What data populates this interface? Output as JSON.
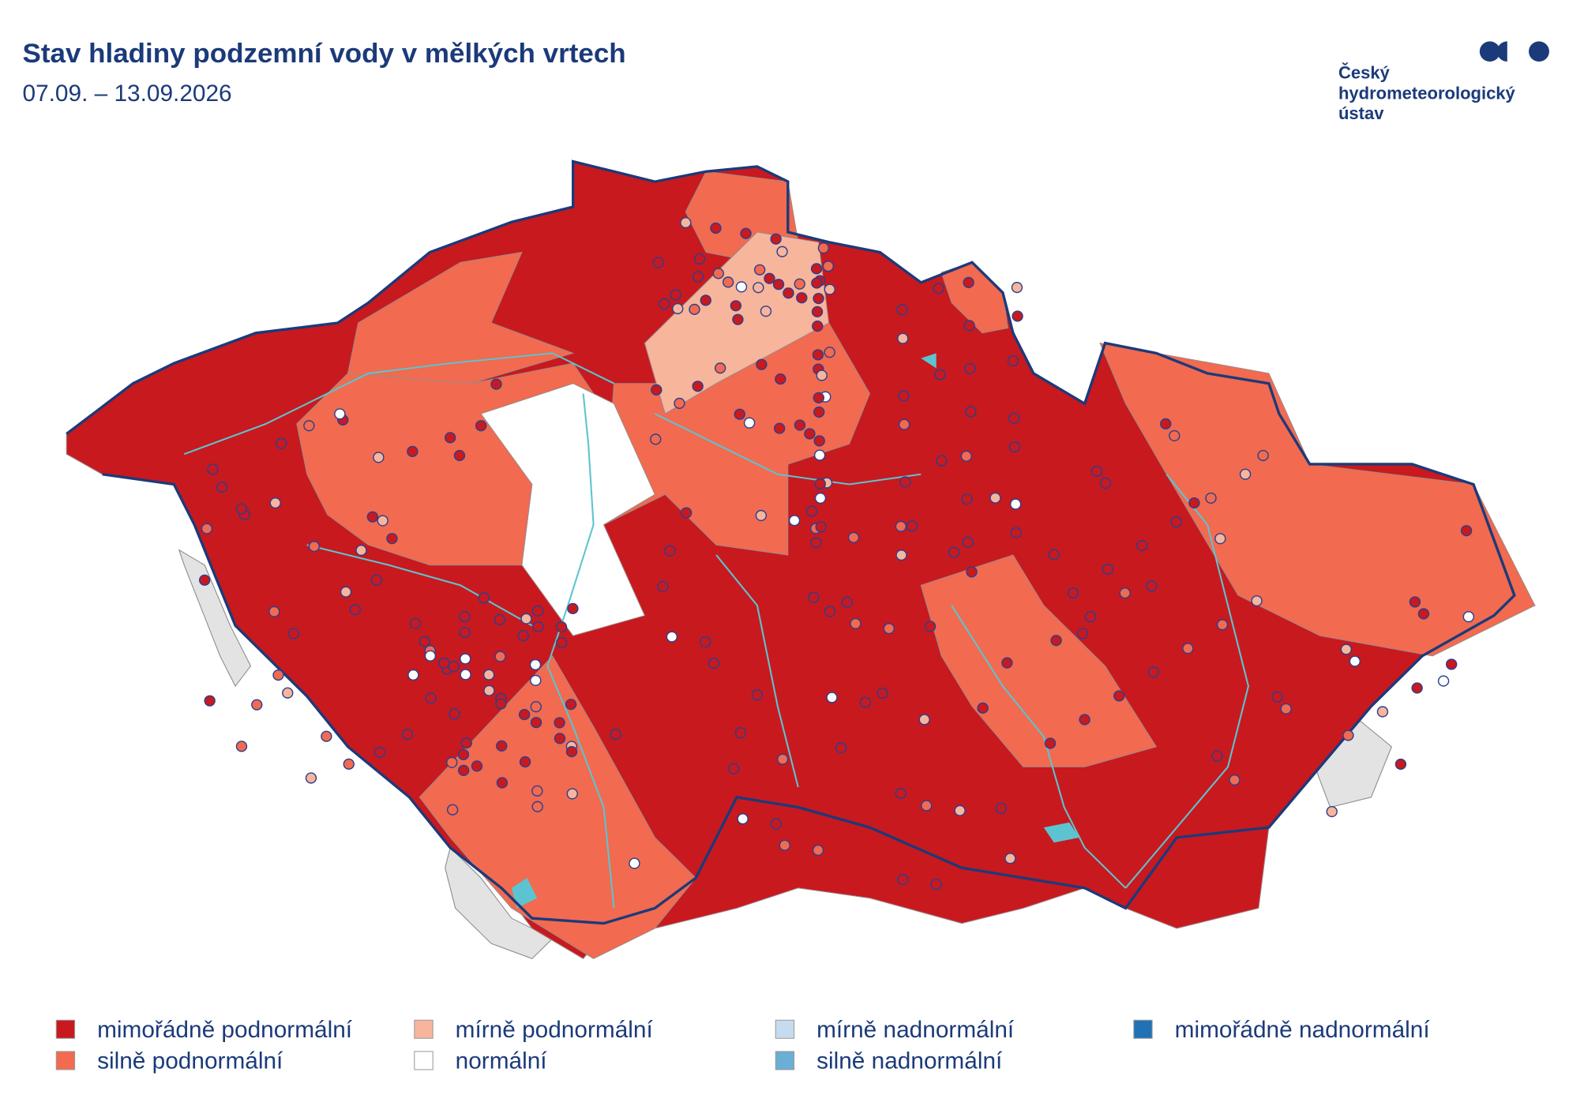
{
  "header": {
    "title": "Stav hladiny podzemní vody v mělkých vrtech",
    "subtitle": "07.09. – 13.09.2026"
  },
  "logo": {
    "lines": [
      "Český",
      "hydrometeorologický",
      "ústav"
    ]
  },
  "legend": [
    {
      "label": "mimořádně podnormální",
      "color": "#c8191f"
    },
    {
      "label": "silně podnormální",
      "color": "#f26a4f"
    },
    {
      "label": "mírně podnormální",
      "color": "#f7b59c"
    },
    {
      "label": "normální",
      "color": "#ffffff"
    },
    {
      "label": "mírně nadnormální",
      "color": "#c6dbef"
    },
    {
      "label": "silně nadnormální",
      "color": "#6baed6"
    },
    {
      "label": "mimořádně nadnormální",
      "color": "#2171b5"
    }
  ]
}
